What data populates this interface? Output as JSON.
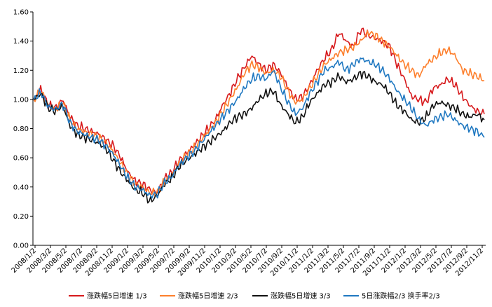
{
  "chart_data": {
    "type": "line",
    "title": "",
    "xlabel": "",
    "ylabel": "",
    "ylim": [
      0,
      1.6
    ],
    "y_ticks": [
      "0.00",
      "0.20",
      "0.40",
      "0.60",
      "0.80",
      "1.00",
      "1.20",
      "1.40",
      "1.60"
    ],
    "x_ticks": [
      "2008/1/2",
      "2008/3/2",
      "2008/5/2",
      "2008/7/2",
      "2008/9/2",
      "2008/11/2",
      "2009/1/2",
      "2009/3/2",
      "2009/5/2",
      "2009/7/2",
      "2009/9/2",
      "2009/11/2",
      "2010/1/2",
      "2010/3/2",
      "2010/5/2",
      "2010/7/2",
      "2010/9/2",
      "2010/11/2",
      "2011/1/2",
      "2011/3/2",
      "2011/5/2",
      "2011/7/2",
      "2011/9/2",
      "2011/11/2",
      "2012/1/2",
      "2012/3/2",
      "2012/5/2",
      "2012/7/2",
      "2012/9/2",
      "2012/11/2"
    ],
    "legend_position": "bottom",
    "series": [
      {
        "name": "涨跌幅5日增速 1/3",
        "color": "#d7191c",
        "values": [
          1.0,
          1.07,
          0.96,
          0.94,
          1.0,
          0.88,
          0.82,
          0.8,
          0.78,
          0.76,
          0.72,
          0.68,
          0.6,
          0.5,
          0.44,
          0.42,
          0.38,
          0.36,
          0.46,
          0.5,
          0.58,
          0.63,
          0.68,
          0.74,
          0.8,
          0.86,
          0.96,
          1.04,
          1.14,
          1.22,
          1.3,
          1.24,
          1.2,
          1.24,
          1.18,
          1.08,
          1.0,
          1.02,
          1.1,
          1.2,
          1.28,
          1.34,
          1.46,
          1.4,
          1.36,
          1.48,
          1.44,
          1.42,
          1.4,
          1.36,
          1.24,
          1.14,
          1.02,
          1.0,
          0.98,
          1.08,
          1.1,
          1.14,
          1.1,
          1.02,
          0.96,
          0.92,
          0.9
        ]
      },
      {
        "name": "涨跌幅5日增速 2/3",
        "color": "#fd7f2c",
        "values": [
          1.0,
          1.06,
          0.96,
          0.93,
          0.98,
          0.86,
          0.8,
          0.78,
          0.76,
          0.74,
          0.7,
          0.64,
          0.56,
          0.48,
          0.42,
          0.4,
          0.36,
          0.36,
          0.44,
          0.48,
          0.56,
          0.62,
          0.66,
          0.72,
          0.78,
          0.84,
          0.92,
          1.0,
          1.08,
          1.18,
          1.24,
          1.22,
          1.18,
          1.2,
          1.16,
          1.06,
          0.98,
          1.0,
          1.08,
          1.16,
          1.24,
          1.28,
          1.32,
          1.34,
          1.36,
          1.4,
          1.46,
          1.44,
          1.4,
          1.36,
          1.3,
          1.24,
          1.2,
          1.16,
          1.24,
          1.28,
          1.32,
          1.34,
          1.3,
          1.2,
          1.18,
          1.16,
          1.13
        ]
      },
      {
        "name": "涨跌幅5日增速 3/3",
        "color": "#111111",
        "values": [
          1.0,
          1.04,
          0.94,
          0.92,
          0.96,
          0.82,
          0.76,
          0.74,
          0.72,
          0.7,
          0.66,
          0.58,
          0.5,
          0.44,
          0.38,
          0.36,
          0.3,
          0.34,
          0.42,
          0.46,
          0.54,
          0.58,
          0.62,
          0.66,
          0.7,
          0.74,
          0.78,
          0.84,
          0.88,
          0.9,
          0.94,
          1.0,
          1.04,
          1.06,
          0.96,
          0.9,
          0.84,
          0.88,
          0.98,
          1.04,
          1.1,
          1.12,
          1.16,
          1.12,
          1.14,
          1.18,
          1.16,
          1.12,
          1.1,
          1.04,
          0.96,
          0.92,
          0.86,
          0.84,
          0.88,
          0.96,
          0.98,
          0.96,
          0.94,
          0.9,
          0.88,
          0.9,
          0.86
        ]
      },
      {
        "name": "5日涨跌幅2/3 换手率2/3",
        "color": "#1f78c1",
        "values": [
          1.0,
          1.05,
          0.95,
          0.93,
          0.97,
          0.84,
          0.78,
          0.76,
          0.74,
          0.72,
          0.68,
          0.62,
          0.54,
          0.46,
          0.4,
          0.38,
          0.34,
          0.35,
          0.43,
          0.47,
          0.55,
          0.6,
          0.64,
          0.7,
          0.76,
          0.82,
          0.88,
          0.94,
          1.0,
          1.08,
          1.14,
          1.16,
          1.14,
          1.2,
          1.08,
          0.98,
          0.9,
          0.94,
          1.04,
          1.12,
          1.2,
          1.22,
          1.26,
          1.2,
          1.24,
          1.28,
          1.26,
          1.24,
          1.2,
          1.14,
          1.06,
          1.0,
          0.94,
          0.86,
          0.82,
          0.86,
          0.88,
          0.9,
          0.86,
          0.82,
          0.8,
          0.78,
          0.74
        ]
      }
    ]
  }
}
